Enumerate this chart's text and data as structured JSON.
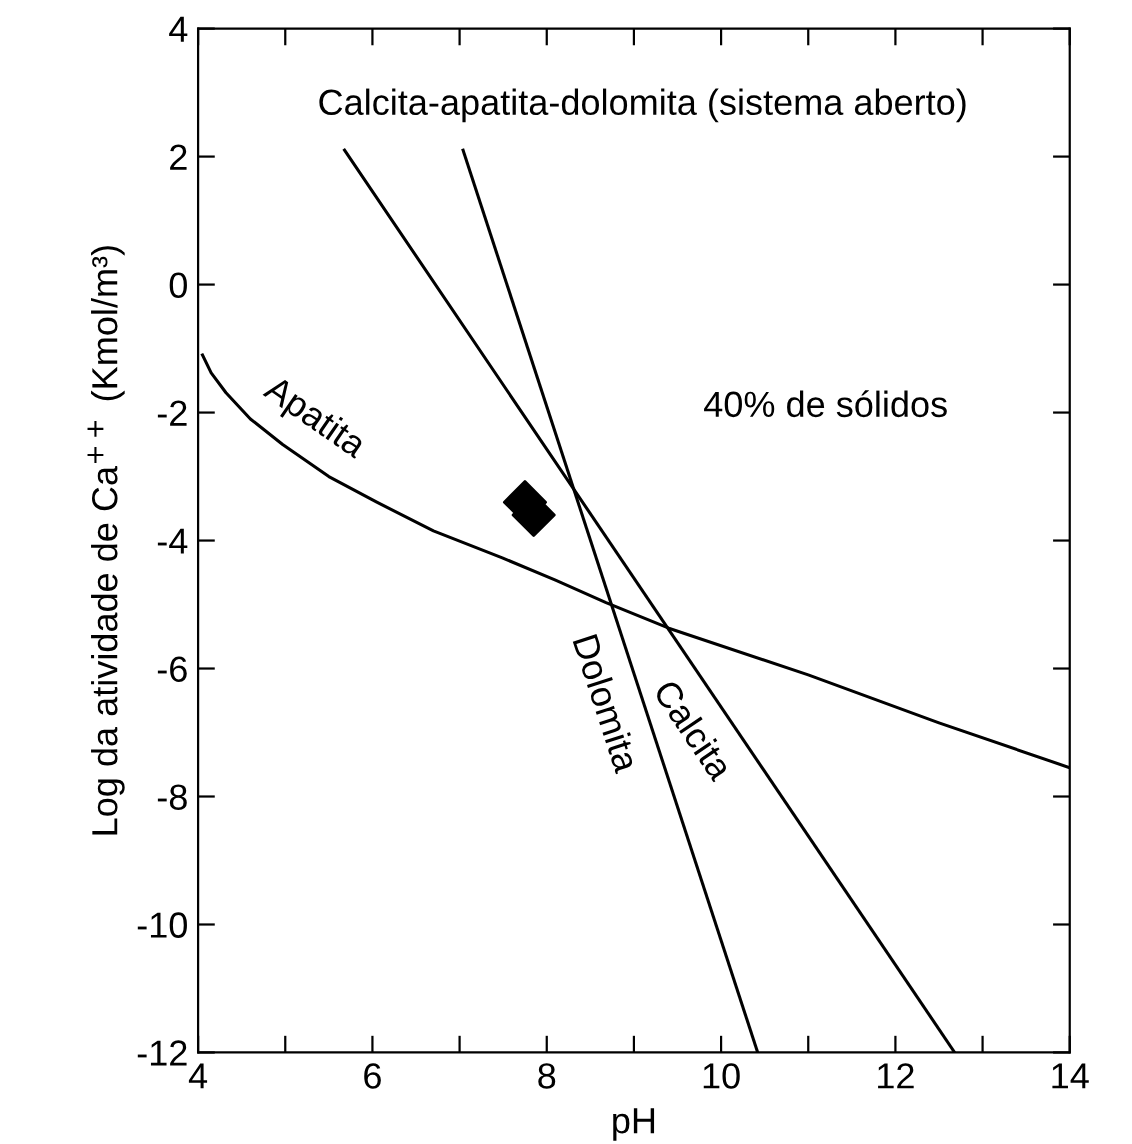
{
  "chart_data": {
    "type": "line",
    "xlabel": "pH",
    "ylabel": "Log da atividade de Ca$^{++}$ (Kmol/m³)",
    "xlim": [
      4,
      14
    ],
    "ylim": [
      -12,
      4
    ],
    "xticks": [
      4,
      {
        "value": 5,
        "label": null
      },
      6,
      {
        "value": 7,
        "label": null
      },
      8,
      {
        "value": 9,
        "label": null
      },
      10,
      {
        "value": 11,
        "label": null
      },
      12,
      {
        "value": 13,
        "label": null
      },
      14
    ],
    "yticks": [
      -12,
      -10,
      -8,
      -6,
      -4,
      -2,
      0,
      2,
      4
    ],
    "grid": false,
    "legend": false,
    "marker": "none",
    "line_style": "solid",
    "annotations": [
      "Calcita-apatita-dolomita (sistema aberto)",
      "40% de sólidos"
    ],
    "series": [
      {
        "name": "Apatita",
        "color": "#000000",
        "x": [
          4.05,
          4.15,
          4.32,
          4.6,
          4.97,
          5.5,
          6.05,
          6.7,
          7.49,
          8.1,
          8.68,
          9.4,
          11.0,
          12.5,
          14.0
        ],
        "values": [
          -1.1,
          -1.38,
          -1.69,
          -2.1,
          -2.5,
          -3.0,
          -3.4,
          -3.85,
          -4.27,
          -4.62,
          -4.97,
          -5.37,
          -6.1,
          -6.85,
          -7.55
        ]
      },
      {
        "name": "Calcita",
        "color": "#000000",
        "x": [
          5.68,
          12.68
        ],
        "values": [
          2.1,
          -12
        ]
      },
      {
        "name": "Dolomita",
        "color": "#000000",
        "x": [
          7.04,
          10.42
        ],
        "values": [
          2.1,
          -12
        ]
      },
      {
        "type": "scatter",
        "color": "#000000",
        "marker": "diamond",
        "x": [
          7.75,
          7.85
        ],
        "values": [
          -3.4,
          -3.6
        ]
      }
    ]
  }
}
